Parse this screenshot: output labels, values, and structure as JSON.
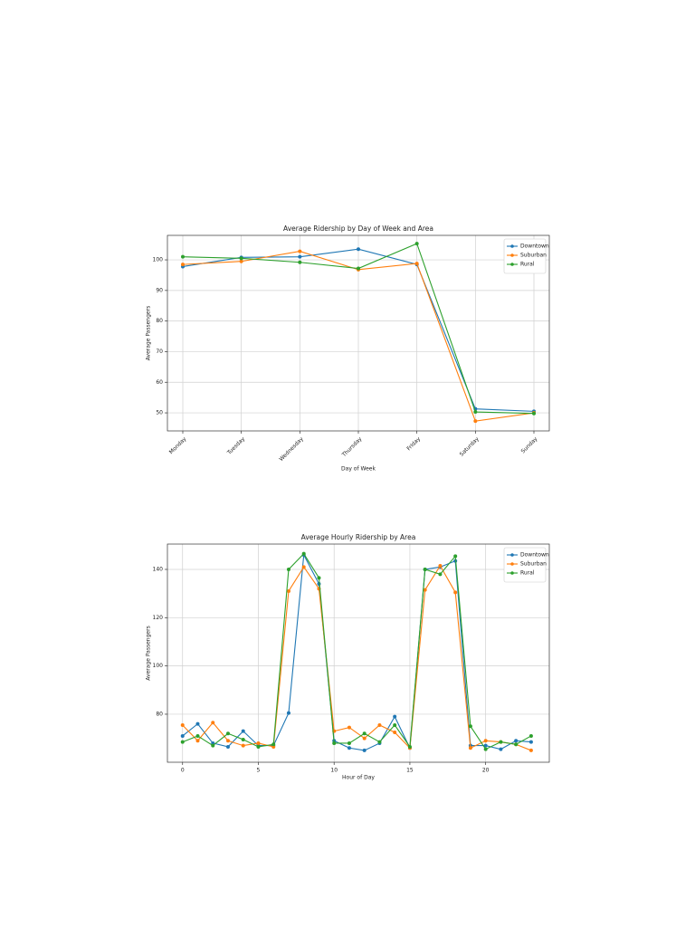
{
  "chart_data": [
    {
      "type": "line",
      "title": "Average Ridership by Day of Week and Area",
      "x_label": "Day of Week",
      "y_label": "Average Passengers",
      "categories": [
        "Monday",
        "Tuesday",
        "Wednesday",
        "Thursday",
        "Friday",
        "Saturday",
        "Sunday"
      ],
      "series": [
        {
          "name": "Downtown",
          "color": "#1f77b4",
          "values": [
            97.8,
            100.8,
            101,
            103.5,
            98.5,
            51.3,
            50.5
          ]
        },
        {
          "name": "Suburban",
          "color": "#ff7f0e",
          "values": [
            98.5,
            99.5,
            102.8,
            96.8,
            98.8,
            47.3,
            50.0
          ]
        },
        {
          "name": "Rural",
          "color": "#2ca02c",
          "values": [
            101,
            100.5,
            99.2,
            97.2,
            105.3,
            50.3,
            49.8
          ]
        }
      ],
      "ylim": [
        44.1,
        108
      ],
      "yticks": [
        50,
        60,
        70,
        80,
        90,
        100
      ],
      "grid": true,
      "legend": "upper right"
    },
    {
      "type": "line",
      "title": "Average Hourly Ridership by Area",
      "x_label": "Hour of Day",
      "y_label": "Average Passengers",
      "x": [
        0,
        1,
        2,
        3,
        4,
        5,
        6,
        7,
        8,
        9,
        10,
        11,
        12,
        13,
        14,
        15,
        16,
        17,
        18,
        19,
        20,
        21,
        22,
        23
      ],
      "series": [
        {
          "name": "Downtown",
          "color": "#1f77b4",
          "values": [
            71,
            76,
            68,
            66.5,
            73,
            67,
            67,
            80.5,
            146,
            134,
            69,
            66,
            65,
            68,
            79,
            66,
            140,
            141,
            143.5,
            67,
            67,
            65.5,
            69,
            68.5
          ]
        },
        {
          "name": "Suburban",
          "color": "#ff7f0e",
          "values": [
            75.5,
            69,
            76.5,
            69,
            67,
            68,
            66.5,
            131,
            141,
            132,
            73,
            74.5,
            70,
            75.5,
            72.5,
            66,
            131.5,
            141.5,
            130.5,
            66,
            69,
            68.5,
            67.5,
            65
          ]
        },
        {
          "name": "Rural",
          "color": "#2ca02c",
          "values": [
            68.5,
            71,
            67,
            72,
            69.5,
            66.5,
            67.5,
            140,
            146.5,
            136.5,
            68,
            68,
            72,
            68.5,
            75.5,
            66.5,
            140,
            138,
            145.5,
            75,
            65.5,
            68.5,
            67.5,
            71
          ]
        }
      ],
      "xlim": [
        -1.0,
        24.2
      ],
      "xticks": [
        0,
        5,
        10,
        15,
        20
      ],
      "ylim": [
        60.1,
        150.5
      ],
      "yticks": [
        80,
        100,
        120,
        140
      ],
      "grid": true,
      "legend": "upper right"
    }
  ]
}
